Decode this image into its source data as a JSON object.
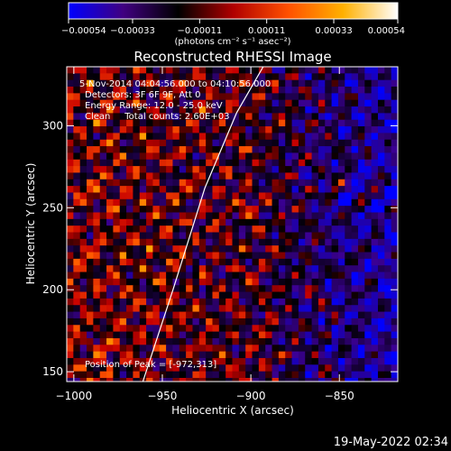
{
  "chart_data": {
    "type": "heatmap",
    "title": "Reconstructed RHESSI Image",
    "xlabel": "Heliocentric X (arcsec)",
    "ylabel": "Heliocentric Y (arcsec)",
    "xlim": [
      -1004,
      -817
    ],
    "ylim": [
      144,
      336
    ],
    "x_ticks": [
      -1000,
      -950,
      -900,
      -850
    ],
    "x_tick_labels": [
      "−1000",
      "−950",
      "−900",
      "−850"
    ],
    "y_ticks": [
      150,
      200,
      250,
      300
    ],
    "y_tick_labels": [
      "150",
      "200",
      "250",
      "300"
    ],
    "colorbar": {
      "range": [
        -0.00054,
        0.00054
      ],
      "ticks": [
        -0.00054,
        -0.00033,
        -0.00011,
        0.00011,
        0.00033,
        0.00054
      ],
      "tick_labels": [
        "−0.00054",
        "−0.00033",
        "−0.00011",
        "0.00011",
        "0.00033",
        "0.00054"
      ],
      "units": "(photons cm⁻² s⁻¹ asec⁻²)",
      "colors": [
        "#0000ff",
        "#400080",
        "#000000",
        "#b00000",
        "#ff5000",
        "#ffb000",
        "#ffffff"
      ]
    },
    "annotations": [
      "5-Nov-2014 04:04:56.000 to 04:10:56.000",
      "Detectors: 3F 6F 9F, Att 0",
      "Energy Range: 12.0 - 25.0 keV",
      "Clean     Total counts: 2.60E+03",
      "Position of Peak = [-972,313]"
    ],
    "limb_line": [
      [
        -961,
        144
      ],
      [
        -944,
        200
      ],
      [
        -926,
        262
      ],
      [
        -908,
        308
      ],
      [
        -893,
        336
      ]
    ],
    "footer_timestamp": "19-May-2022 02:34"
  }
}
